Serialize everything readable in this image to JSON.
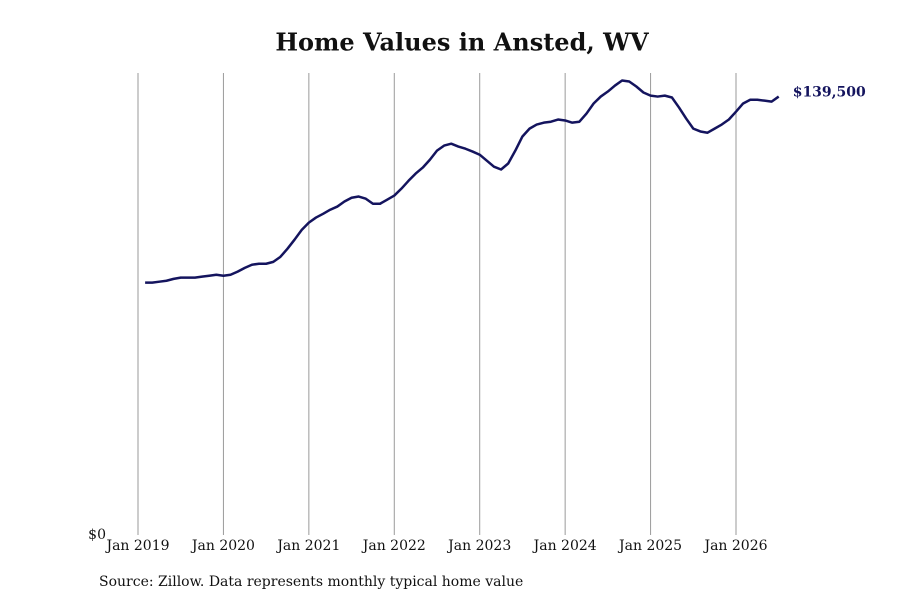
{
  "chart_data": {
    "type": "line",
    "title": "Home Values in Ansted, WV",
    "source": "Source: Zillow. Data represents monthly typical home value",
    "categories": [
      "Jan 2019",
      null,
      null,
      null,
      null,
      null,
      null,
      null,
      null,
      null,
      null,
      null,
      "Jan 2020",
      null,
      null,
      null,
      null,
      null,
      null,
      null,
      null,
      null,
      null,
      null,
      "Jan 2021",
      null,
      null,
      null,
      null,
      null,
      null,
      null,
      null,
      null,
      null,
      null,
      "Jan 2022",
      null,
      null,
      null,
      null,
      null,
      null,
      null,
      null,
      null,
      null,
      null,
      "Jan 2023",
      null,
      null,
      null,
      null,
      null,
      null,
      null,
      null,
      null,
      null,
      null,
      "Jan 2024",
      null,
      null,
      null,
      null,
      null,
      null,
      null,
      null,
      null,
      null,
      null,
      "Jan 2025",
      null,
      null,
      null,
      null,
      null,
      null,
      null,
      null,
      null,
      null,
      null,
      "Jan 2026",
      null,
      null,
      null,
      null,
      null,
      null
    ],
    "series": [
      {
        "name": "Typical home value",
        "color": "#14145e",
        "values": [
          null,
          80300,
          80300,
          80600,
          80900,
          81500,
          81900,
          81900,
          81900,
          82200,
          82500,
          82800,
          82500,
          82800,
          83800,
          85000,
          86000,
          86300,
          86300,
          86900,
          88500,
          91100,
          94000,
          97100,
          99400,
          101000,
          102200,
          103500,
          104500,
          106100,
          107300,
          107700,
          107000,
          105400,
          105400,
          106700,
          108000,
          110200,
          112700,
          115000,
          116900,
          119400,
          122300,
          123900,
          124500,
          123600,
          122900,
          122000,
          121000,
          119100,
          117200,
          116300,
          118200,
          122300,
          126800,
          129300,
          130600,
          131200,
          131500,
          132200,
          131900,
          131200,
          131500,
          134100,
          137300,
          139500,
          141100,
          143000,
          144600,
          144300,
          142700,
          140800,
          139800,
          139500,
          139800,
          139200,
          136000,
          132500,
          129300,
          128400,
          128000,
          129300,
          130600,
          132200,
          134700,
          137300,
          138500,
          138500,
          138200,
          137900,
          139500
        ],
        "value_labels": [
          null,
          null,
          null,
          null,
          null,
          null,
          null,
          null,
          null,
          null,
          null,
          null,
          null,
          null,
          null,
          null,
          null,
          null,
          null,
          null,
          null,
          null,
          null,
          null,
          null,
          null,
          null,
          null,
          null,
          null,
          null,
          null,
          null,
          null,
          null,
          null,
          null,
          null,
          null,
          null,
          null,
          null,
          null,
          null,
          null,
          null,
          null,
          null,
          null,
          null,
          null,
          null,
          null,
          null,
          null,
          null,
          null,
          null,
          null,
          null,
          null,
          null,
          null,
          null,
          null,
          null,
          null,
          null,
          null,
          null,
          null,
          null,
          null,
          null,
          null,
          null,
          null,
          null,
          null,
          null,
          null,
          null,
          null,
          null,
          null,
          null,
          null,
          null,
          null,
          null,
          "$139,500"
        ]
      }
    ],
    "ylim": [
      0,
      147000
    ],
    "yticks": [
      {
        "value": 0,
        "label": "$0"
      }
    ],
    "xgrid": true
  }
}
